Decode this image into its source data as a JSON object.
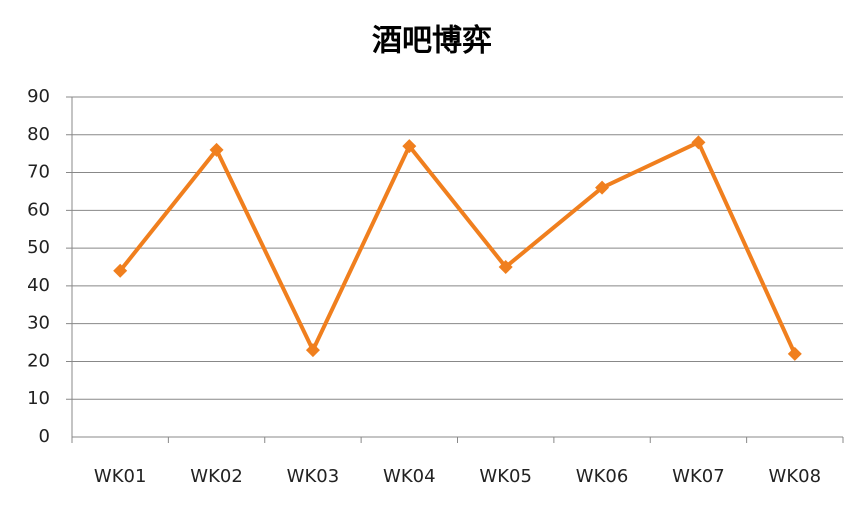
{
  "chart_data": {
    "type": "line",
    "title": "酒吧博弈",
    "categories": [
      "WK01",
      "WK02",
      "WK03",
      "WK04",
      "WK05",
      "WK06",
      "WK07",
      "WK08"
    ],
    "series": [
      {
        "color": "#f07f1e",
        "values": [
          44,
          76,
          23,
          77,
          45,
          66,
          78,
          22
        ]
      }
    ],
    "ylim": [
      0,
      90
    ],
    "yticks": [
      0,
      10,
      20,
      30,
      40,
      50,
      60,
      70,
      80,
      90
    ],
    "grid": true
  }
}
